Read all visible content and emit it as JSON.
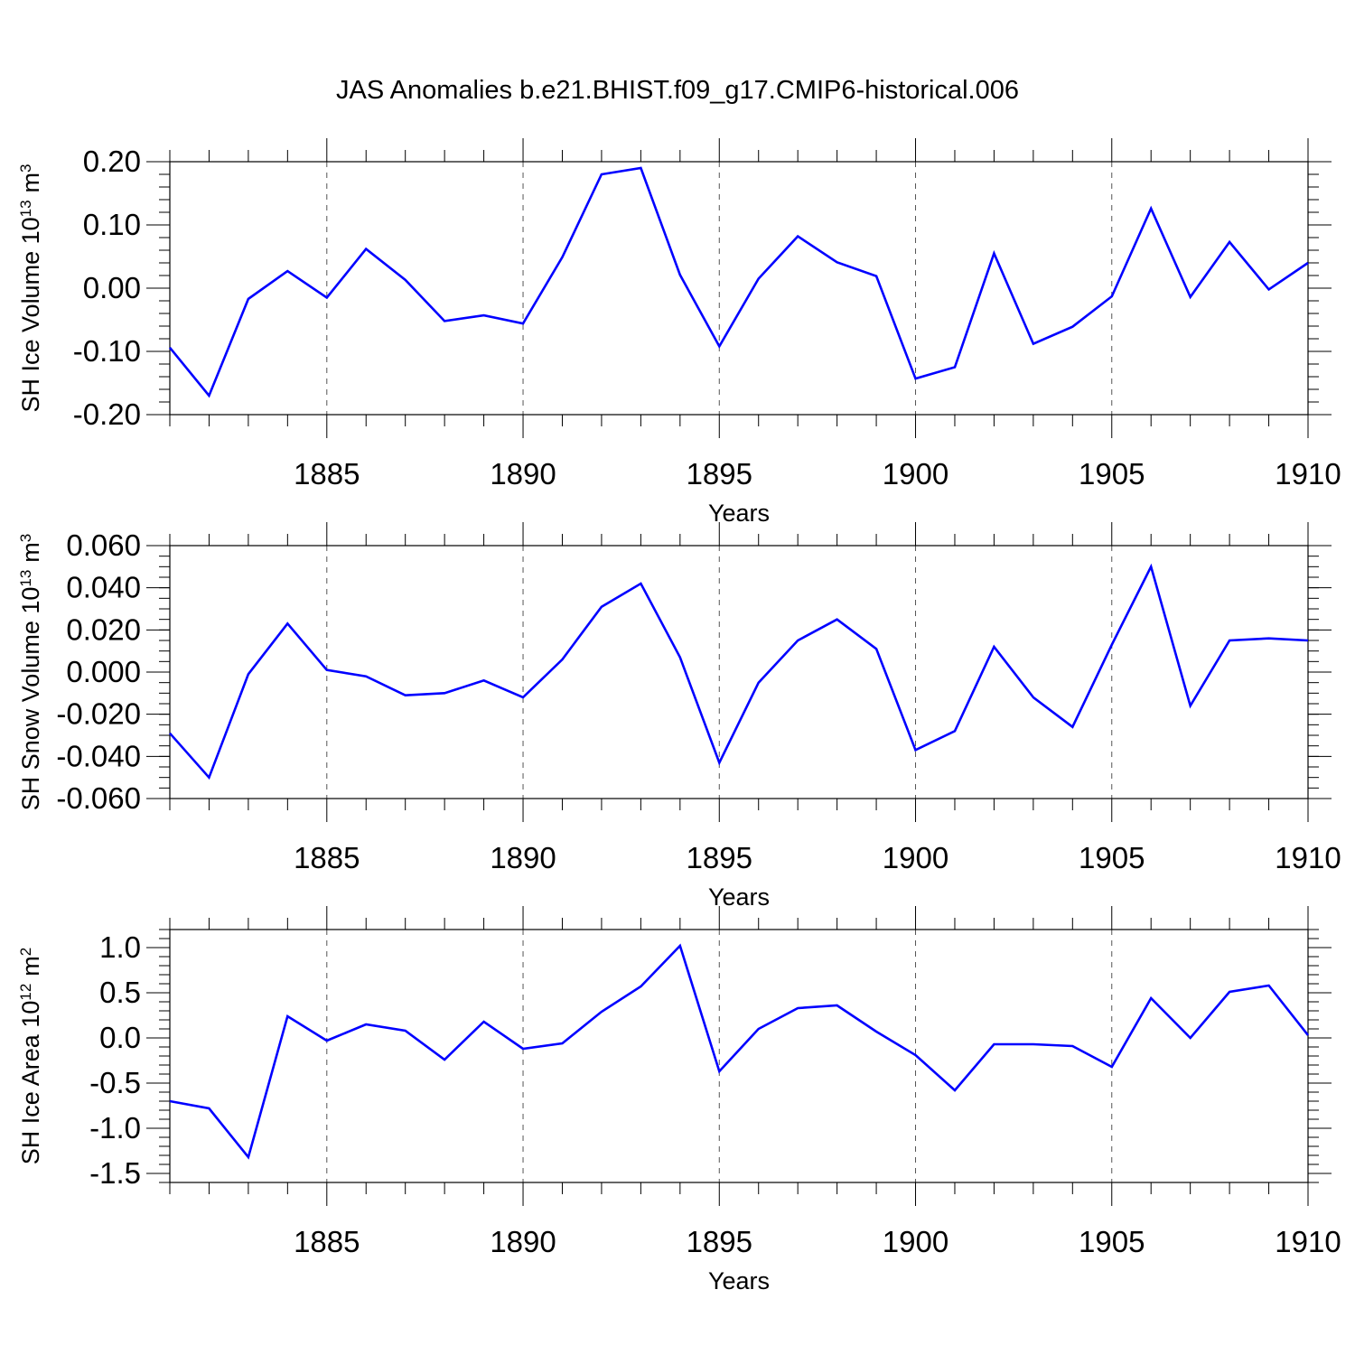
{
  "title": "JAS Anomalies b.e21.BHIST.f09_g17.CMIP6-historical.006",
  "colors": {
    "line": "#0000ff",
    "axis": "#000000",
    "grid": "#555555"
  },
  "chart_data": [
    {
      "type": "line",
      "ylabel": "SH Ice Volume 10",
      "ylabel_exp": "13",
      "ylabel_unit": "m",
      "ylabel_unit_exp": "3",
      "xlabel": "Years",
      "xlim": [
        1881,
        1910
      ],
      "ylim": [
        -0.2,
        0.2
      ],
      "yticks": [
        -0.2,
        -0.1,
        0.0,
        0.1,
        0.2
      ],
      "ytick_labels": [
        "-0.20",
        "-0.10",
        "0.00",
        "0.10",
        "0.20"
      ],
      "yminor_step": 0.02,
      "xticks": [
        1885,
        1890,
        1895,
        1900,
        1905,
        1910
      ],
      "xtick_labels": [
        "1885",
        "1890",
        "1895",
        "1900",
        "1905",
        "1910"
      ],
      "x": [
        1881,
        1882,
        1883,
        1884,
        1885,
        1886,
        1887,
        1888,
        1889,
        1890,
        1891,
        1892,
        1893,
        1894,
        1895,
        1896,
        1897,
        1898,
        1899,
        1900,
        1901,
        1902,
        1903,
        1904,
        1905,
        1906,
        1907,
        1908,
        1909,
        1910
      ],
      "series": [
        {
          "name": "SH Ice Volume",
          "values": [
            -0.094,
            -0.17,
            -0.017,
            0.027,
            -0.015,
            0.062,
            0.013,
            -0.052,
            -0.043,
            -0.056,
            0.049,
            0.18,
            0.19,
            0.021,
            -0.092,
            0.015,
            0.082,
            0.041,
            0.019,
            -0.143,
            -0.125,
            0.055,
            -0.088,
            -0.061,
            -0.013,
            0.126,
            -0.014,
            0.073,
            -0.002,
            0.04
          ]
        }
      ]
    },
    {
      "type": "line",
      "ylabel": "SH Snow Volume 10",
      "ylabel_exp": "13",
      "ylabel_unit": "m",
      "ylabel_unit_exp": "3",
      "xlabel": "Years",
      "xlim": [
        1881,
        1910
      ],
      "ylim": [
        -0.06,
        0.06
      ],
      "yticks": [
        -0.06,
        -0.04,
        -0.02,
        0.0,
        0.02,
        0.04,
        0.06
      ],
      "ytick_labels": [
        "-0.060",
        "-0.040",
        "-0.020",
        "0.000",
        "0.020",
        "0.040",
        "0.060"
      ],
      "yminor_step": 0.005,
      "xticks": [
        1885,
        1890,
        1895,
        1900,
        1905,
        1910
      ],
      "xtick_labels": [
        "1885",
        "1890",
        "1895",
        "1900",
        "1905",
        "1910"
      ],
      "x": [
        1881,
        1882,
        1883,
        1884,
        1885,
        1886,
        1887,
        1888,
        1889,
        1890,
        1891,
        1892,
        1893,
        1894,
        1895,
        1896,
        1897,
        1898,
        1899,
        1900,
        1901,
        1902,
        1903,
        1904,
        1905,
        1906,
        1907,
        1908,
        1909,
        1910
      ],
      "series": [
        {
          "name": "SH Snow Volume",
          "values": [
            -0.029,
            -0.05,
            -0.001,
            0.023,
            0.001,
            -0.002,
            -0.011,
            -0.01,
            -0.004,
            -0.012,
            0.006,
            0.031,
            0.042,
            0.007,
            -0.043,
            -0.005,
            0.015,
            0.025,
            0.011,
            -0.037,
            -0.028,
            0.012,
            -0.012,
            -0.026,
            0.013,
            0.05,
            -0.016,
            0.015,
            0.016,
            0.015
          ]
        }
      ]
    },
    {
      "type": "line",
      "ylabel": "SH Ice Area 10",
      "ylabel_exp": "12",
      "ylabel_unit": "m",
      "ylabel_unit_exp": "2",
      "xlabel": "Years",
      "xlim": [
        1881,
        1910
      ],
      "ylim": [
        -1.6,
        1.2
      ],
      "yticks": [
        -1.5,
        -1.0,
        -0.5,
        0.0,
        0.5,
        1.0
      ],
      "ytick_labels": [
        "-1.5",
        "-1.0",
        "-0.5",
        "0.0",
        "0.5",
        "1.0"
      ],
      "yminor_step": 0.1,
      "xticks": [
        1885,
        1890,
        1895,
        1900,
        1905,
        1910
      ],
      "xtick_labels": [
        "1885",
        "1890",
        "1895",
        "1900",
        "1905",
        "1910"
      ],
      "x": [
        1881,
        1882,
        1883,
        1884,
        1885,
        1886,
        1887,
        1888,
        1889,
        1890,
        1891,
        1892,
        1893,
        1894,
        1895,
        1896,
        1897,
        1898,
        1899,
        1900,
        1901,
        1902,
        1903,
        1904,
        1905,
        1906,
        1907,
        1908,
        1909,
        1910
      ],
      "series": [
        {
          "name": "SH Ice Area",
          "values": [
            -0.7,
            -0.78,
            -1.32,
            0.24,
            -0.03,
            0.15,
            0.08,
            -0.24,
            0.18,
            -0.12,
            -0.06,
            0.29,
            0.57,
            1.02,
            -0.37,
            0.1,
            0.33,
            0.36,
            0.07,
            -0.19,
            -0.58,
            -0.07,
            -0.07,
            -0.09,
            -0.32,
            0.44,
            0.0,
            0.51,
            0.58,
            0.03
          ]
        }
      ]
    }
  ]
}
